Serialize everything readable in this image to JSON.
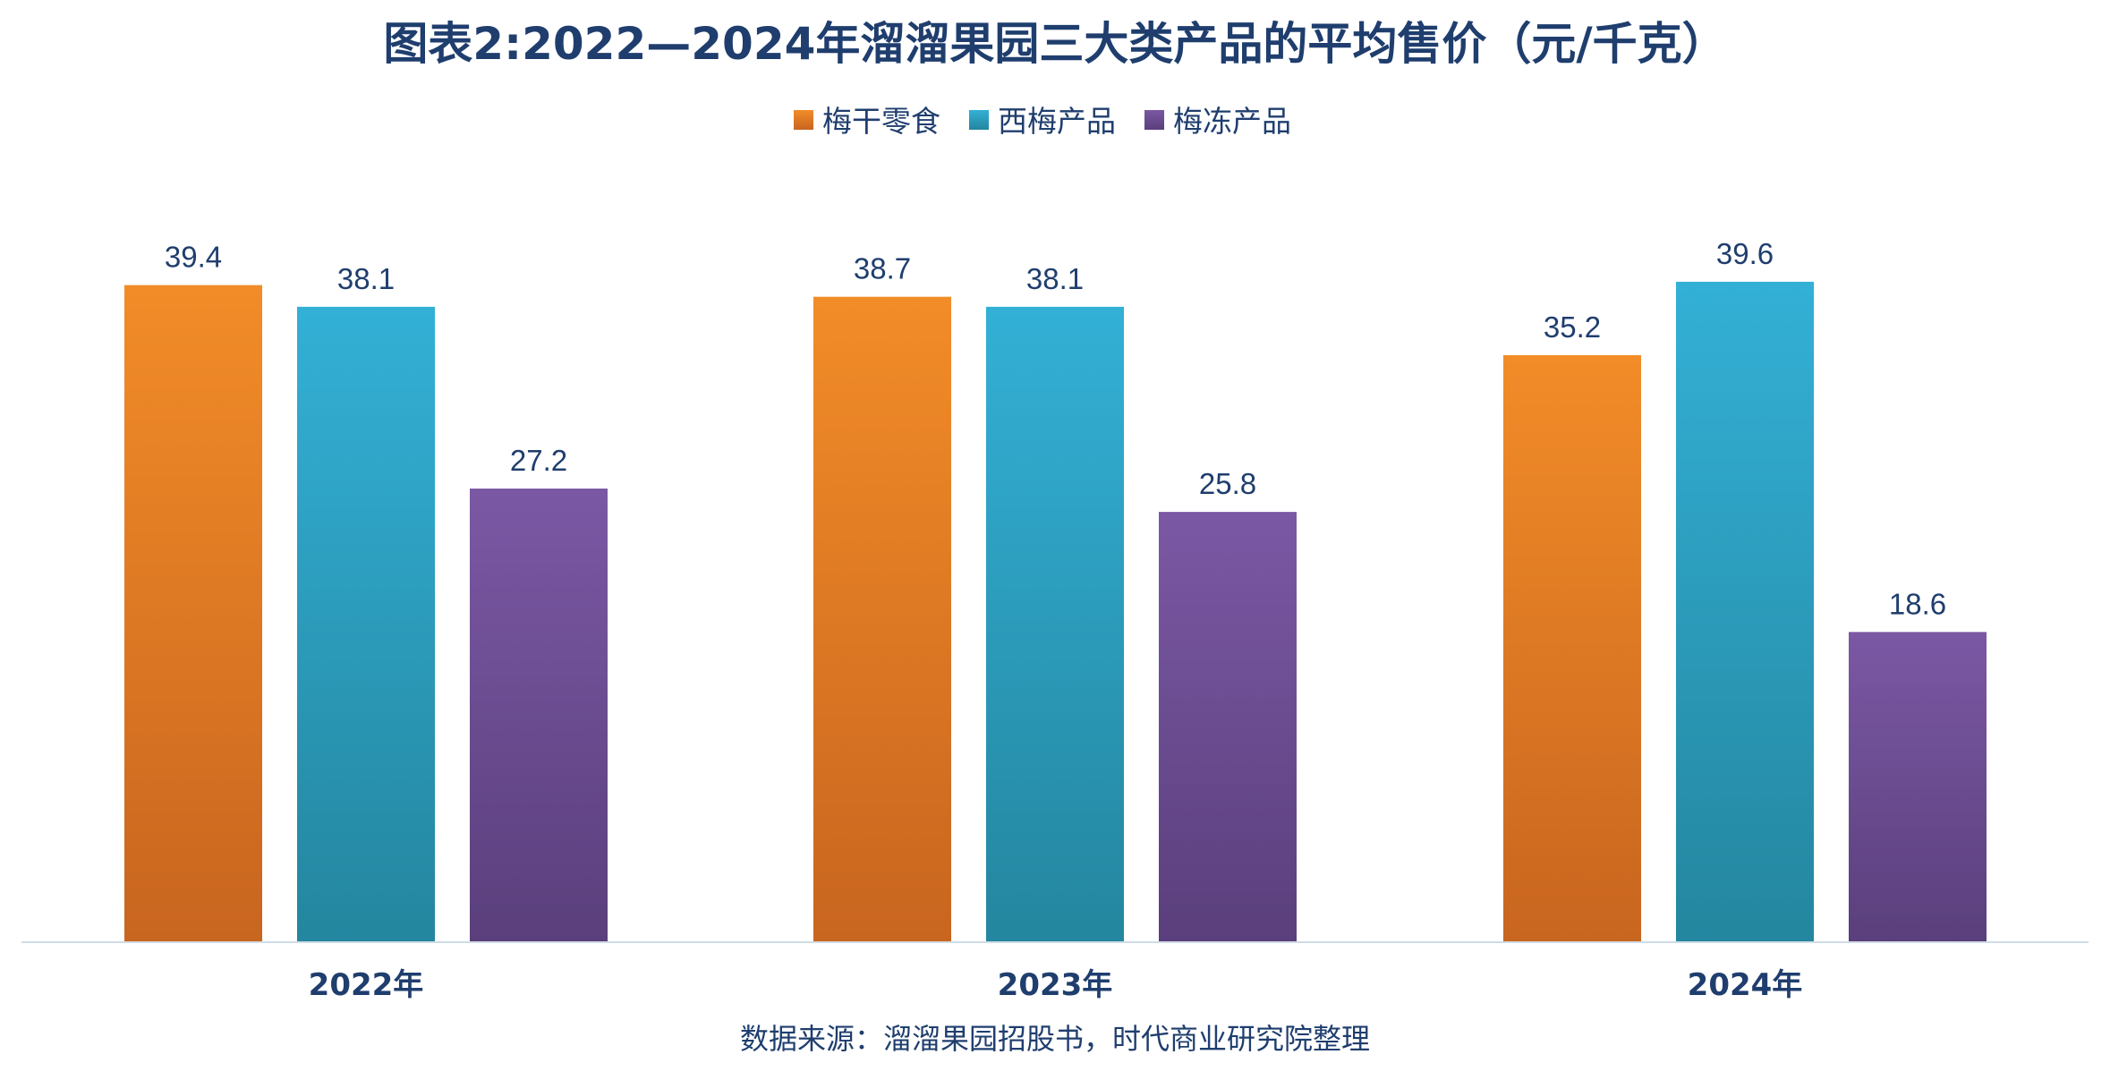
{
  "chart_data": {
    "type": "bar",
    "title": "图表2:2022—2024年溜溜果园三大类产品的平均售价（元/千克）",
    "categories": [
      "2022年",
      "2023年",
      "2024年"
    ],
    "series": [
      {
        "name": "梅干零食",
        "values": [
          39.4,
          38.7,
          35.2
        ],
        "color": "#f28c28",
        "color_dark": "#c8651f"
      },
      {
        "name": "西梅产品",
        "values": [
          38.1,
          38.1,
          39.6
        ],
        "color": "#33b0d6",
        "color_dark": "#24869f"
      },
      {
        "name": "梅冻产品",
        "values": [
          27.2,
          25.8,
          18.6
        ],
        "color": "#7b58a4",
        "color_dark": "#5a3f7c"
      }
    ],
    "ylim": [
      0,
      40.4
    ],
    "grid": false,
    "legend_position": "top-center",
    "xlabel": "",
    "ylabel": ""
  },
  "source_note": "数据来源：溜溜果园招股书，时代商业研究院整理",
  "axis_color": "#d0dce6"
}
